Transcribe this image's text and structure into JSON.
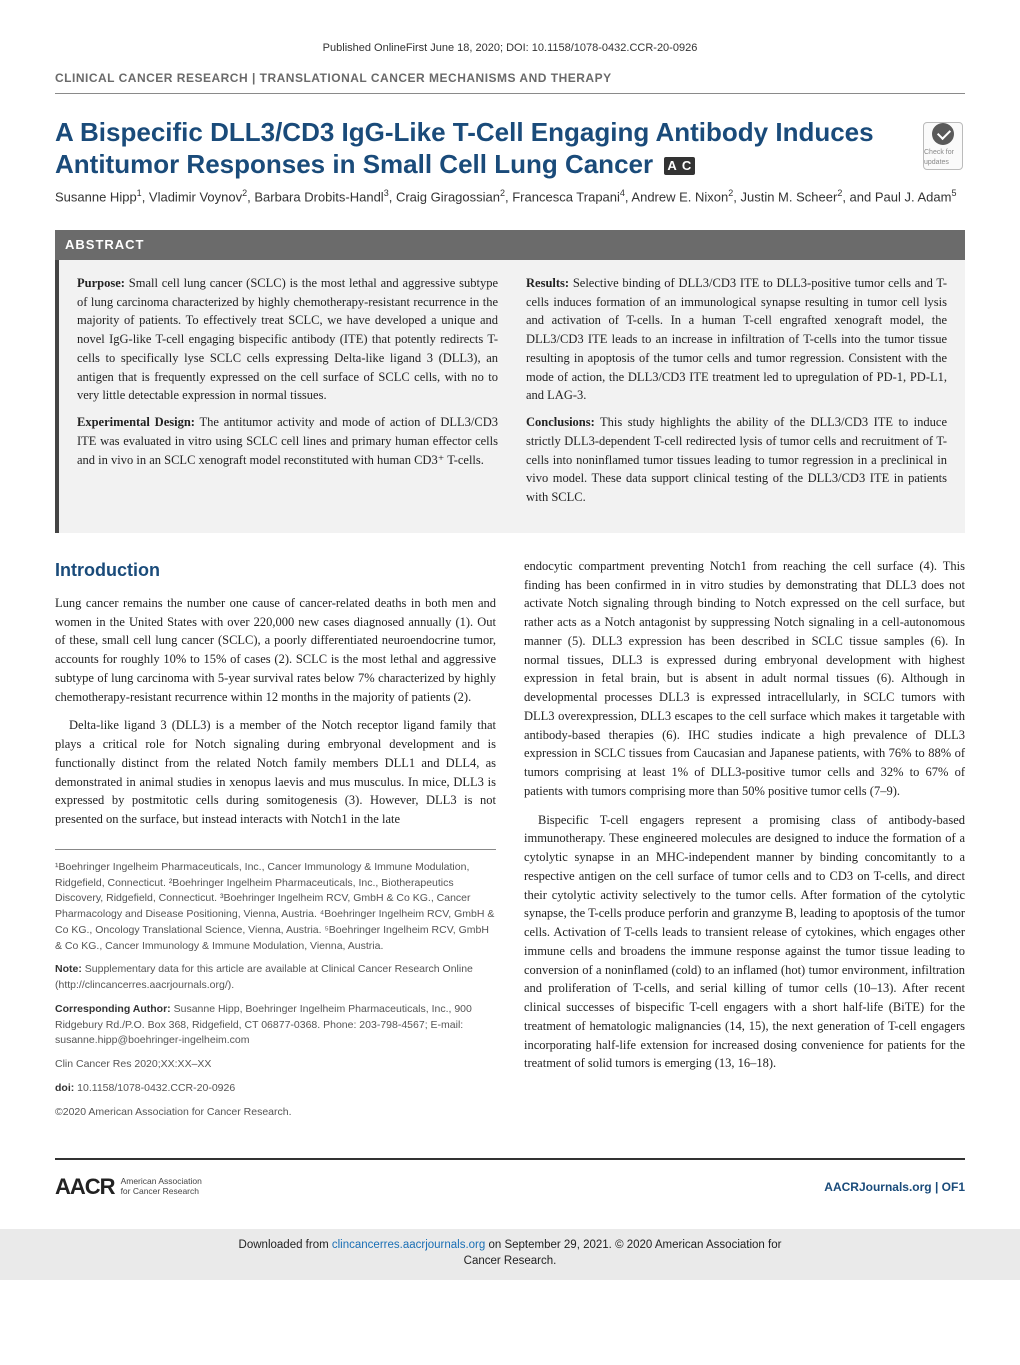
{
  "header_meta": "Published OnlineFirst June 18, 2020; DOI: 10.1158/1078-0432.CCR-20-0926",
  "section_label": "CLINICAL CANCER RESEARCH | TRANSLATIONAL CANCER MECHANISMS AND THERAPY",
  "title": "A Bispecific DLL3/CD3 IgG-Like T-Cell Engaging Antibody Induces Antitumor Responses in Small Cell Lung Cancer",
  "ac_badge": "A C",
  "check_badge": "Check for updates",
  "authors_html": "Susanne Hipp<sup>1</sup>, Vladimir Voynov<sup>2</sup>, Barbara Drobits-Handl<sup>3</sup>, Craig Giragossian<sup>2</sup>, Francesca Trapani<sup>4</sup>, Andrew E. Nixon<sup>2</sup>, Justin M. Scheer<sup>2</sup>, and Paul J. Adam<sup>5</sup>",
  "abstract_heading": "ABSTRACT",
  "abstract": {
    "purpose": "Small cell lung cancer (SCLC) is the most lethal and aggressive subtype of lung carcinoma characterized by highly chemotherapy-resistant recurrence in the majority of patients. To effectively treat SCLC, we have developed a unique and novel IgG-like T-cell engaging bispecific antibody (ITE) that potently redirects T-cells to specifically lyse SCLC cells expressing Delta-like ligand 3 (DLL3), an antigen that is frequently expressed on the cell surface of SCLC cells, with no to very little detectable expression in normal tissues.",
    "design": "The antitumor activity and mode of action of DLL3/CD3 ITE was evaluated in vitro using SCLC cell lines and primary human effector cells and in vivo in an SCLC xenograft model reconstituted with human CD3⁺ T-cells.",
    "results": "Selective binding of DLL3/CD3 ITE to DLL3-positive tumor cells and T-cells induces formation of an immunological synapse resulting in tumor cell lysis and activation of T-cells. In a human T-cell engrafted xenograft model, the DLL3/CD3 ITE leads to an increase in infiltration of T-cells into the tumor tissue resulting in apoptosis of the tumor cells and tumor regression. Consistent with the mode of action, the DLL3/CD3 ITE treatment led to upregulation of PD-1, PD-L1, and LAG-3.",
    "conclusions": "This study highlights the ability of the DLL3/CD3 ITE to induce strictly DLL3-dependent T-cell redirected lysis of tumor cells and recruitment of T-cells into noninflamed tumor tissues leading to tumor regression in a preclinical in vivo model. These data support clinical testing of the DLL3/CD3 ITE in patients with SCLC."
  },
  "intro_heading": "Introduction",
  "intro": {
    "p1": "Lung cancer remains the number one cause of cancer-related deaths in both men and women in the United States with over 220,000 new cases diagnosed annually (1). Out of these, small cell lung cancer (SCLC), a poorly differentiated neuroendocrine tumor, accounts for roughly 10% to 15% of cases (2). SCLC is the most lethal and aggressive subtype of lung carcinoma with 5-year survival rates below 7% characterized by highly chemotherapy-resistant recurrence within 12 months in the majority of patients (2).",
    "p2": "Delta-like ligand 3 (DLL3) is a member of the Notch receptor ligand family that plays a critical role for Notch signaling during embryonal development and is functionally distinct from the related Notch family members DLL1 and DLL4, as demonstrated in animal studies in xenopus laevis and mus musculus. In mice, DLL3 is expressed by postmitotic cells during somitogenesis (3). However, DLL3 is not presented on the surface, but instead interacts with Notch1 in the late",
    "p3": "endocytic compartment preventing Notch1 from reaching the cell surface (4). This finding has been confirmed in in vitro studies by demonstrating that DLL3 does not activate Notch signaling through binding to Notch expressed on the cell surface, but rather acts as a Notch antagonist by suppressing Notch signaling in a cell-autonomous manner (5). DLL3 expression has been described in SCLC tissue samples (6). In normal tissues, DLL3 is expressed during embryonal development with highest expression in fetal brain, but is absent in adult normal tissues (6). Although in developmental processes DLL3 is expressed intracellularly, in SCLC tumors with DLL3 overexpression, DLL3 escapes to the cell surface which makes it targetable with antibody-based therapies (6). IHC studies indicate a high prevalence of DLL3 expression in SCLC tissues from Caucasian and Japanese patients, with 76% to 88% of tumors comprising at least 1% of DLL3-positive tumor cells and 32% to 67% of patients with tumors comprising more than 50% positive tumor cells (7–9).",
    "p4": "Bispecific T-cell engagers represent a promising class of antibody-based immunotherapy. These engineered molecules are designed to induce the formation of a cytolytic synapse in an MHC-independent manner by binding concomitantly to a respective antigen on the cell surface of tumor cells and to CD3 on T-cells, and direct their cytolytic activity selectively to the tumor cells. After formation of the cytolytic synapse, the T-cells produce perforin and granzyme B, leading to apoptosis of the tumor cells. Activation of T-cells leads to transient release of cytokines, which engages other immune cells and broadens the immune response against the tumor tissue leading to conversion of a noninflamed (cold) to an inflamed (hot) tumor environment, infiltration and proliferation of T-cells, and serial killing of tumor cells (10–13). After recent clinical successes of bispecific T-cell engagers with a short half-life (BiTE) for the treatment of hematologic malignancies (14, 15), the next generation of T-cell engagers incorporating half-life extension for increased dosing convenience for patients for the treatment of solid tumors is emerging (13, 16–18)."
  },
  "affiliations": "¹Boehringer Ingelheim Pharmaceuticals, Inc., Cancer Immunology & Immune Modulation, Ridgefield, Connecticut. ²Boehringer Ingelheim Pharmaceuticals, Inc., Biotherapeutics Discovery, Ridgefield, Connecticut. ³Boehringer Ingelheim RCV, GmbH & Co KG., Cancer Pharmacology and Disease Positioning, Vienna, Austria. ⁴Boehringer Ingelheim RCV, GmbH & Co KG., Oncology Translational Science, Vienna, Austria. ⁵Boehringer Ingelheim RCV, GmbH & Co KG., Cancer Immunology & Immune Modulation, Vienna, Austria.",
  "note": "Supplementary data for this article are available at Clinical Cancer Research Online (http://clincancerres.aacrjournals.org/).",
  "corresponding": "Susanne Hipp, Boehringer Ingelheim Pharmaceuticals, Inc., 900 Ridgebury Rd./P.O. Box 368, Ridgefield, CT 06877-0368. Phone: 203-798-4567; E-mail: susanne.hipp@boehringer-ingelheim.com",
  "citation": "Clin Cancer Res 2020;XX:XX–XX",
  "doi": "10.1158/1078-0432.CCR-20-0926",
  "copyright": "©2020 American Association for Cancer Research.",
  "logo": {
    "main": "AACR",
    "sub1": "American Association",
    "sub2": "for Cancer Research"
  },
  "page_num": "AACRJournals.org | OF1",
  "footer_download": "Downloaded from clincancerres.aacrjournals.org on September 29, 2021. © 2020 American Association for Cancer Research.",
  "footer_link": "clincancerres.aacrjournals.org"
}
